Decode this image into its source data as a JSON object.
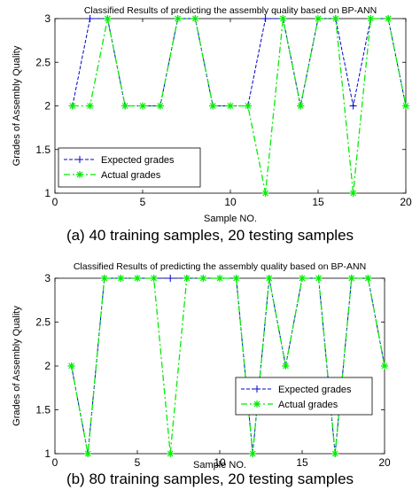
{
  "chart_data": [
    {
      "type": "line",
      "title": "Classified Results of predicting the assembly quality based on BP-ANN",
      "xlabel": "Sample NO.",
      "ylabel": "Grades of Assembly Quality",
      "caption": "(a) 40 training samples, 20 testing samples",
      "xlim": [
        0,
        20
      ],
      "ylim": [
        1,
        3
      ],
      "xticks": [
        "0",
        "5",
        "10",
        "15",
        "20"
      ],
      "yticks": [
        "1",
        "1.5",
        "2",
        "2.5",
        "3"
      ],
      "grid": false,
      "legend_position": "lower-left",
      "x": [
        1,
        2,
        3,
        4,
        5,
        6,
        7,
        8,
        9,
        10,
        11,
        12,
        13,
        14,
        15,
        16,
        17,
        18,
        19,
        20
      ],
      "series": [
        {
          "name": "Expected grades",
          "color": "#0000cc",
          "marker": "plus",
          "style": "dashed",
          "values": [
            2,
            3,
            3,
            2,
            2,
            2,
            3,
            3,
            2,
            2,
            2,
            3,
            3,
            2,
            3,
            3,
            2,
            3,
            3,
            2
          ]
        },
        {
          "name": "Actual grades",
          "color": "#00ee00",
          "marker": "star",
          "style": "dashdot",
          "values": [
            2,
            2,
            3,
            2,
            2,
            2,
            3,
            3,
            2,
            2,
            2,
            1,
            3,
            2,
            3,
            3,
            1,
            3,
            3,
            2
          ]
        }
      ]
    },
    {
      "type": "line",
      "title": "Classified Results of predicting the assembly quality based on BP-ANN",
      "xlabel": "Sample NO.",
      "ylabel": "Grades of Assembly Quality",
      "caption": "(b) 80 training samples, 20 testing samples",
      "xlim": [
        0,
        20
      ],
      "ylim": [
        1,
        3
      ],
      "xticks": [
        "0",
        "5",
        "10",
        "15",
        "20"
      ],
      "yticks": [
        "1",
        "1.5",
        "2",
        "2.5",
        "3"
      ],
      "grid": false,
      "legend_position": "lower-right",
      "x": [
        1,
        2,
        3,
        4,
        5,
        6,
        7,
        8,
        9,
        10,
        11,
        12,
        13,
        14,
        15,
        16,
        17,
        18,
        19,
        20
      ],
      "series": [
        {
          "name": "Expected grades",
          "color": "#0000cc",
          "marker": "plus",
          "style": "dashed",
          "values": [
            2,
            1,
            3,
            3,
            3,
            3,
            3,
            3,
            3,
            3,
            3,
            1,
            3,
            2,
            3,
            3,
            1,
            3,
            3,
            2
          ]
        },
        {
          "name": "Actual grades",
          "color": "#00ee00",
          "marker": "star",
          "style": "dashdot",
          "values": [
            2,
            1,
            3,
            3,
            3,
            3,
            1,
            3,
            3,
            3,
            3,
            1,
            3,
            2,
            3,
            3,
            1,
            3,
            3,
            2
          ]
        }
      ]
    }
  ]
}
